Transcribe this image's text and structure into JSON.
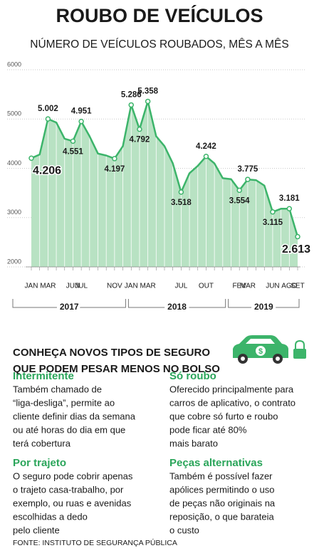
{
  "chart_data": {
    "type": "area-line",
    "title": "ROUBO DE VEÍCULOS",
    "subtitle": "NÚMERO DE VEÍCULOS ROUBADOS, MÊS A MÊS",
    "categories": [
      "JAN",
      null,
      "MAR",
      null,
      null,
      "JUN",
      "JUL",
      null,
      null,
      null,
      "NOV",
      null,
      "JAN",
      null,
      "MAR",
      null,
      null,
      null,
      "JUL",
      null,
      null,
      "OUT",
      null,
      null,
      null,
      "FEV",
      "MAR",
      null,
      null,
      "JUN",
      null,
      "AGO",
      "SET"
    ],
    "years": [
      "2017",
      "2018",
      "2019"
    ],
    "values": [
      4206,
      4280,
      5002,
      4930,
      4600,
      4551,
      4951,
      4650,
      4300,
      4260,
      4197,
      4450,
      5286,
      4792,
      5358,
      4650,
      4450,
      4100,
      3518,
      3900,
      4050,
      4242,
      4100,
      3800,
      3780,
      3554,
      3775,
      3760,
      3650,
      3115,
      3180,
      3181,
      2613
    ],
    "value_labels": [
      "4.206",
      null,
      "5.002",
      null,
      null,
      "4.551",
      "4.951",
      null,
      null,
      null,
      "4.197",
      null,
      "5.286",
      "4.792",
      "5.358",
      null,
      null,
      null,
      "3.518",
      null,
      null,
      "4.242",
      null,
      null,
      null,
      "3.554",
      "3.775",
      null,
      null,
      "3.115",
      null,
      "3.181",
      "2.613"
    ],
    "color": "#3cb46a",
    "fill": "#b8e2c3",
    "ylim": [
      2000,
      6000
    ],
    "yticks": [
      2000,
      3000,
      4000,
      5000,
      6000
    ],
    "grid": true
  },
  "insurance": {
    "title_lines": [
      "CONHEÇA NOVOS TIPOS DE SEGURO",
      "QUE PODEM PESAR MENOS NO BOLSO"
    ],
    "cards": [
      {
        "heading": "Intermitente",
        "lines": [
          "Também chamado de",
          "“liga-desliga”, permite ao",
          "cliente definir dias da semana",
          "ou até horas do dia em que",
          "terá cobertura"
        ]
      },
      {
        "heading": "Só roubo",
        "lines": [
          "Oferecido principalmente para",
          "carros de aplicativo, o contrato",
          "que cobre só furto e roubo",
          "pode ficar até 80%",
          "mais barato"
        ]
      },
      {
        "heading": "Por trajeto",
        "lines": [
          "O seguro pode cobrir apenas",
          "o trajeto casa-trabalho, por",
          "exemplo, ou ruas e avenidas",
          "escolhidas a dedo",
          "pelo cliente"
        ]
      },
      {
        "heading": "Peças alternativas",
        "lines": [
          "Também é possível fazer",
          "apólices permitindo o uso",
          "de peças não originais na",
          "reposição, o que barateia",
          "o custo"
        ]
      }
    ],
    "source": "FONTE: INSTITUTO DE SEGURANÇA PÚBLICA"
  }
}
